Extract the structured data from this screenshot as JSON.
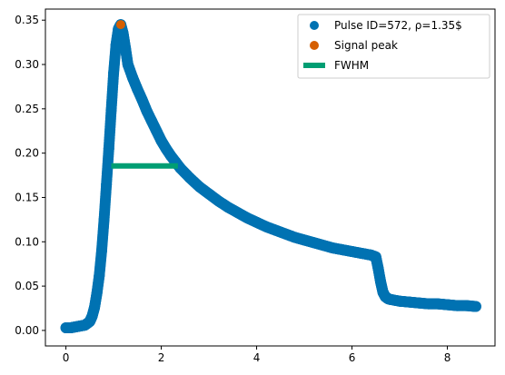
{
  "chart_data": {
    "type": "scatter",
    "title": "",
    "xlabel": "",
    "ylabel": "",
    "xlim": [
      -0.43,
      9.0
    ],
    "ylim": [
      -0.0175,
      0.3625
    ],
    "xticks": [
      0,
      2,
      4,
      6,
      8
    ],
    "yticks": [
      0.0,
      0.05,
      0.1,
      0.15,
      0.2,
      0.25,
      0.3,
      0.35
    ],
    "xtick_labels": [
      "0",
      "2",
      "4",
      "6",
      "8"
    ],
    "ytick_labels": [
      "0.00",
      "0.05",
      "0.10",
      "0.15",
      "0.20",
      "0.25",
      "0.30",
      "0.35"
    ],
    "grid": false,
    "legend_position": "top-right",
    "series": [
      {
        "name": "Pulse ID=572, ρ=1.35$",
        "kind": "scatter",
        "color": "#0072b2",
        "x": [
          0.0,
          0.1,
          0.2,
          0.3,
          0.4,
          0.5,
          0.55,
          0.6,
          0.65,
          0.7,
          0.75,
          0.8,
          0.85,
          0.9,
          0.95,
          1.0,
          1.05,
          1.1,
          1.15,
          1.2,
          1.25,
          1.3,
          1.4,
          1.5,
          1.6,
          1.7,
          1.8,
          1.9,
          2.0,
          2.1,
          2.2,
          2.3,
          2.4,
          2.6,
          2.8,
          3.0,
          3.2,
          3.4,
          3.6,
          3.8,
          4.0,
          4.2,
          4.4,
          4.6,
          4.8,
          5.0,
          5.2,
          5.4,
          5.6,
          5.8,
          6.0,
          6.2,
          6.4,
          6.5,
          6.55,
          6.6,
          6.65,
          6.7,
          6.75,
          6.8,
          7.0,
          7.2,
          7.4,
          7.6,
          7.8,
          8.0,
          8.2,
          8.4,
          8.6
        ],
        "y": [
          0.003,
          0.003,
          0.004,
          0.005,
          0.006,
          0.01,
          0.016,
          0.026,
          0.042,
          0.062,
          0.09,
          0.125,
          0.165,
          0.205,
          0.248,
          0.29,
          0.322,
          0.34,
          0.345,
          0.335,
          0.318,
          0.3,
          0.285,
          0.272,
          0.26,
          0.247,
          0.236,
          0.225,
          0.214,
          0.205,
          0.197,
          0.19,
          0.183,
          0.172,
          0.162,
          0.154,
          0.146,
          0.139,
          0.133,
          0.127,
          0.122,
          0.117,
          0.113,
          0.109,
          0.105,
          0.102,
          0.099,
          0.096,
          0.093,
          0.091,
          0.089,
          0.087,
          0.085,
          0.083,
          0.07,
          0.055,
          0.043,
          0.038,
          0.036,
          0.035,
          0.033,
          0.032,
          0.031,
          0.03,
          0.03,
          0.029,
          0.028,
          0.028,
          0.027
        ]
      },
      {
        "name": "Signal peak",
        "kind": "scatter",
        "color": "#d55e00",
        "x": [
          1.15
        ],
        "y": [
          0.345
        ]
      },
      {
        "name": "FWHM",
        "kind": "line",
        "color": "#009e73",
        "x": [
          0.95,
          2.35
        ],
        "y": [
          0.1855,
          0.1855
        ]
      }
    ]
  }
}
